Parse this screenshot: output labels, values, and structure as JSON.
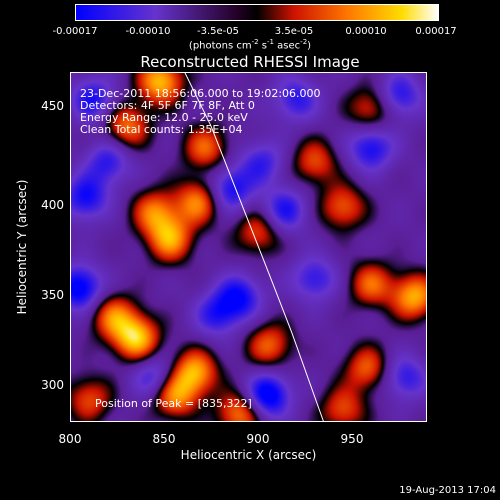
{
  "chart_data": {
    "type": "heatmap",
    "title": "Reconstructed RHESSI Image",
    "xlabel": "Heliocentric X (arcsec)",
    "ylabel": "Heliocentric Y (arcsec)",
    "xlim": [
      800,
      990
    ],
    "ylim": [
      275,
      470
    ],
    "x_ticks": [
      "800",
      "850",
      "900",
      "950"
    ],
    "x_tick_values": [
      800,
      850,
      900,
      950
    ],
    "y_ticks": [
      "300",
      "350",
      "400",
      "450"
    ],
    "y_tick_values": [
      300,
      350,
      400,
      450
    ],
    "colorbar": {
      "range": [
        -0.00017,
        0.00017
      ],
      "tick_labels": [
        "-0.00017",
        "-0.00010",
        "-3.5e-05",
        "3.5e-05",
        "0.00010",
        "0.00017"
      ],
      "tick_values": [
        -0.00017,
        -0.0001,
        -3.5e-05,
        3.5e-05,
        0.0001,
        0.00017
      ],
      "unit_prefix": "(photons cm",
      "unit_exp1": "-2",
      "unit_mid": " s",
      "unit_exp2": "-1",
      "unit_mid2": " asec",
      "unit_exp3": "-2",
      "unit_suffix": ")",
      "colors": [
        "#0000ff",
        "#6633cc",
        "#000000",
        "#cc1100",
        "#ff7700",
        "#ffdd00",
        "#ffffff"
      ]
    },
    "info_lines": [
      "23-Dec-2011 18:56:06.000 to 19:02:06.000",
      "Detectors: 4F 5F 6F 7F 8F, Att 0",
      "Energy Range: 12.0 - 25.0 keV",
      "Clean    Total counts: 1.35E+04"
    ],
    "peak_label": "Position of Peak = [835,322]",
    "limb_curve": [
      [
        861,
        470
      ],
      [
        875,
        440
      ],
      [
        890,
        400
      ],
      [
        905,
        360
      ],
      [
        918,
        325
      ],
      [
        935,
        275
      ]
    ],
    "sources": [
      {
        "x": 830,
        "y": 440,
        "value": 0.00012
      },
      {
        "x": 848,
        "y": 465,
        "value": 0.00016
      },
      {
        "x": 872,
        "y": 428,
        "value": 0.00011
      },
      {
        "x": 868,
        "y": 398,
        "value": 0.00013
      },
      {
        "x": 845,
        "y": 392,
        "value": 0.00012
      },
      {
        "x": 853,
        "y": 377,
        "value": 0.00014
      },
      {
        "x": 900,
        "y": 381,
        "value": 0.0001
      },
      {
        "x": 930,
        "y": 420,
        "value": 0.0001
      },
      {
        "x": 960,
        "y": 450,
        "value": 0.0001
      },
      {
        "x": 945,
        "y": 395,
        "value": 0.00011
      },
      {
        "x": 983,
        "y": 345,
        "value": 0.00015
      },
      {
        "x": 960,
        "y": 352,
        "value": 0.00011
      },
      {
        "x": 835,
        "y": 322,
        "value": 0.00017
      },
      {
        "x": 823,
        "y": 334,
        "value": 0.00012
      },
      {
        "x": 866,
        "y": 303,
        "value": 0.00015
      },
      {
        "x": 855,
        "y": 290,
        "value": 0.00014
      },
      {
        "x": 906,
        "y": 318,
        "value": 0.00011
      },
      {
        "x": 958,
        "y": 305,
        "value": 0.00011
      },
      {
        "x": 945,
        "y": 282,
        "value": 0.0001
      },
      {
        "x": 810,
        "y": 288,
        "value": 0.0001
      },
      {
        "x": 890,
        "y": 280,
        "value": 0.00013
      },
      {
        "x": 812,
        "y": 455,
        "value": -0.00011
      },
      {
        "x": 820,
        "y": 420,
        "value": -0.0001
      },
      {
        "x": 808,
        "y": 400,
        "value": -0.00012
      },
      {
        "x": 885,
        "y": 405,
        "value": -0.00012
      },
      {
        "x": 902,
        "y": 420,
        "value": -9e-05
      },
      {
        "x": 914,
        "y": 393,
        "value": -0.00011
      },
      {
        "x": 960,
        "y": 428,
        "value": -0.00012
      },
      {
        "x": 975,
        "y": 457,
        "value": -0.00011
      },
      {
        "x": 920,
        "y": 455,
        "value": -0.0001
      },
      {
        "x": 805,
        "y": 350,
        "value": -0.00015
      },
      {
        "x": 930,
        "y": 355,
        "value": -0.0001
      },
      {
        "x": 890,
        "y": 345,
        "value": -0.00012
      },
      {
        "x": 905,
        "y": 290,
        "value": -0.00016
      },
      {
        "x": 845,
        "y": 300,
        "value": -0.0001
      },
      {
        "x": 978,
        "y": 300,
        "value": -0.0001
      },
      {
        "x": 878,
        "y": 335,
        "value": -0.0001
      }
    ]
  },
  "footer": {
    "timestamp": "19-Aug-2013 17:04"
  }
}
